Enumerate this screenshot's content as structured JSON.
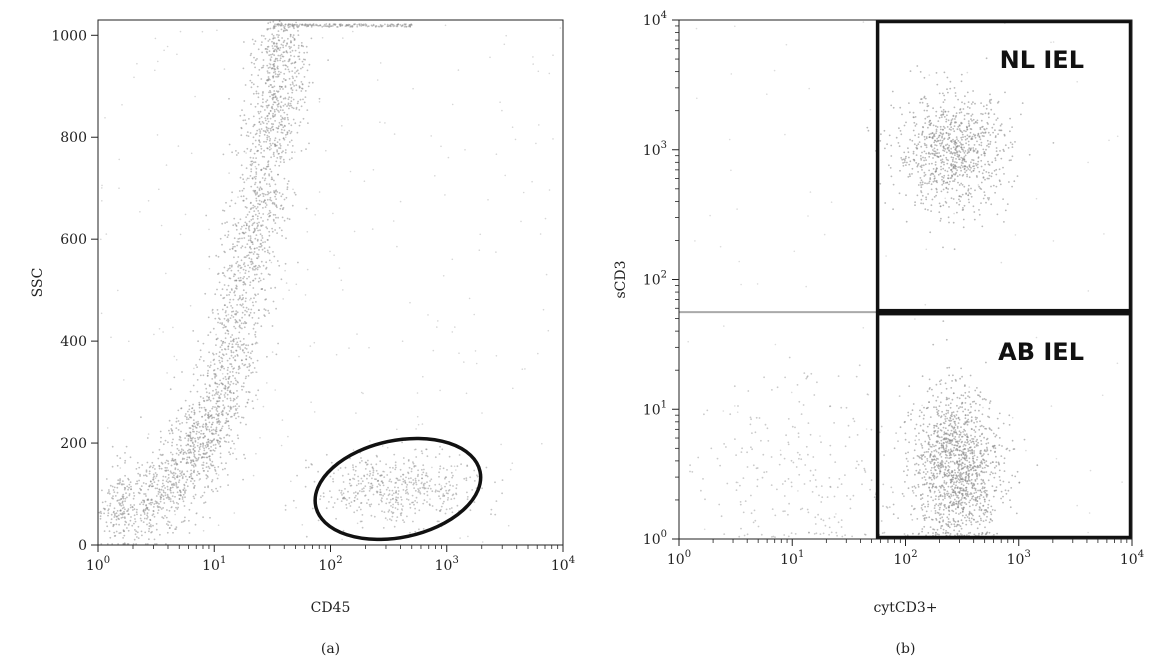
{
  "chart_data": [
    {
      "type": "scatter",
      "panel_label": "(a)",
      "xlabel": "CD45",
      "ylabel": "SSC",
      "x_scale": "log",
      "xlim": [
        1,
        10000
      ],
      "ylim": [
        0,
        1030
      ],
      "x_ticks": [
        1,
        10,
        100,
        1000,
        10000
      ],
      "x_tick_labels": [
        {
          "b": "10",
          "e": "0"
        },
        {
          "b": "10",
          "e": "1"
        },
        {
          "b": "10",
          "e": "2"
        },
        {
          "b": "10",
          "e": "3"
        },
        {
          "b": "10",
          "e": "4"
        }
      ],
      "y_ticks": [
        0,
        200,
        400,
        600,
        800,
        1000
      ],
      "y_tick_labels": [
        "0",
        "200",
        "400",
        "600",
        "800",
        "1000"
      ],
      "populations": [
        {
          "path": [
            [
              1.2,
              60
            ],
            [
              2.5,
              85
            ],
            [
              5,
              130
            ],
            [
              8,
              200
            ],
            [
              11,
              280
            ],
            [
              15,
              400
            ],
            [
              20,
              550
            ],
            [
              25,
              680
            ],
            [
              30,
              800
            ],
            [
              36,
              920
            ],
            [
              40,
              1020
            ]
          ],
          "y_spread": 45,
          "count": 2600
        },
        {
          "center": [
            380,
            110
          ],
          "x_spread_decades": 0.35,
          "y_spread": 35,
          "count": 500
        }
      ],
      "gate": {
        "type": "ellipse",
        "center": [
          380,
          110
        ],
        "x_range": [
          70,
          1950
        ],
        "y_range": [
          25,
          215
        ]
      },
      "point_color": "#8a8a8a"
    },
    {
      "type": "scatter",
      "panel_label": "(b)",
      "xlabel": "cytCD3+",
      "ylabel": "sCD3",
      "x_scale": "log",
      "y_scale": "log",
      "xlim": [
        1,
        10000
      ],
      "ylim": [
        1,
        10000
      ],
      "x_ticks": [
        1,
        10,
        100,
        1000,
        10000
      ],
      "x_tick_labels": [
        {
          "b": "10",
          "e": "0"
        },
        {
          "b": "10",
          "e": "1"
        },
        {
          "b": "10",
          "e": "2"
        },
        {
          "b": "10",
          "e": "3"
        },
        {
          "b": "10",
          "e": "4"
        }
      ],
      "y_ticks": [
        1,
        10,
        100,
        1000,
        10000
      ],
      "y_tick_labels": [
        {
          "b": "10",
          "e": "0"
        },
        {
          "b": "10",
          "e": "1"
        },
        {
          "b": "10",
          "e": "2"
        },
        {
          "b": "10",
          "e": "3"
        },
        {
          "b": "10",
          "e": "4"
        }
      ],
      "populations": [
        {
          "center": [
            260,
            950
          ],
          "x_spread_decades": 0.25,
          "y_spread_decades": 0.22,
          "count": 900
        },
        {
          "center": [
            280,
            3.5
          ],
          "x_spread_decades": 0.2,
          "y_spread_decades": 0.3,
          "count": 1400
        },
        {
          "center": [
            15,
            3
          ],
          "x_spread_decades": 0.5,
          "y_spread_decades": 0.4,
          "count": 260
        }
      ],
      "quadrant_lines": {
        "x": 55,
        "y": 56
      },
      "gates": [
        {
          "label": "NL IEL",
          "x_range": [
            55,
            10000
          ],
          "y_range": [
            56,
            10000
          ]
        },
        {
          "label": "AB IEL",
          "x_range": [
            55,
            10000
          ],
          "y_range": [
            1,
            56
          ]
        }
      ],
      "point_color": "#8a8a8a"
    }
  ]
}
